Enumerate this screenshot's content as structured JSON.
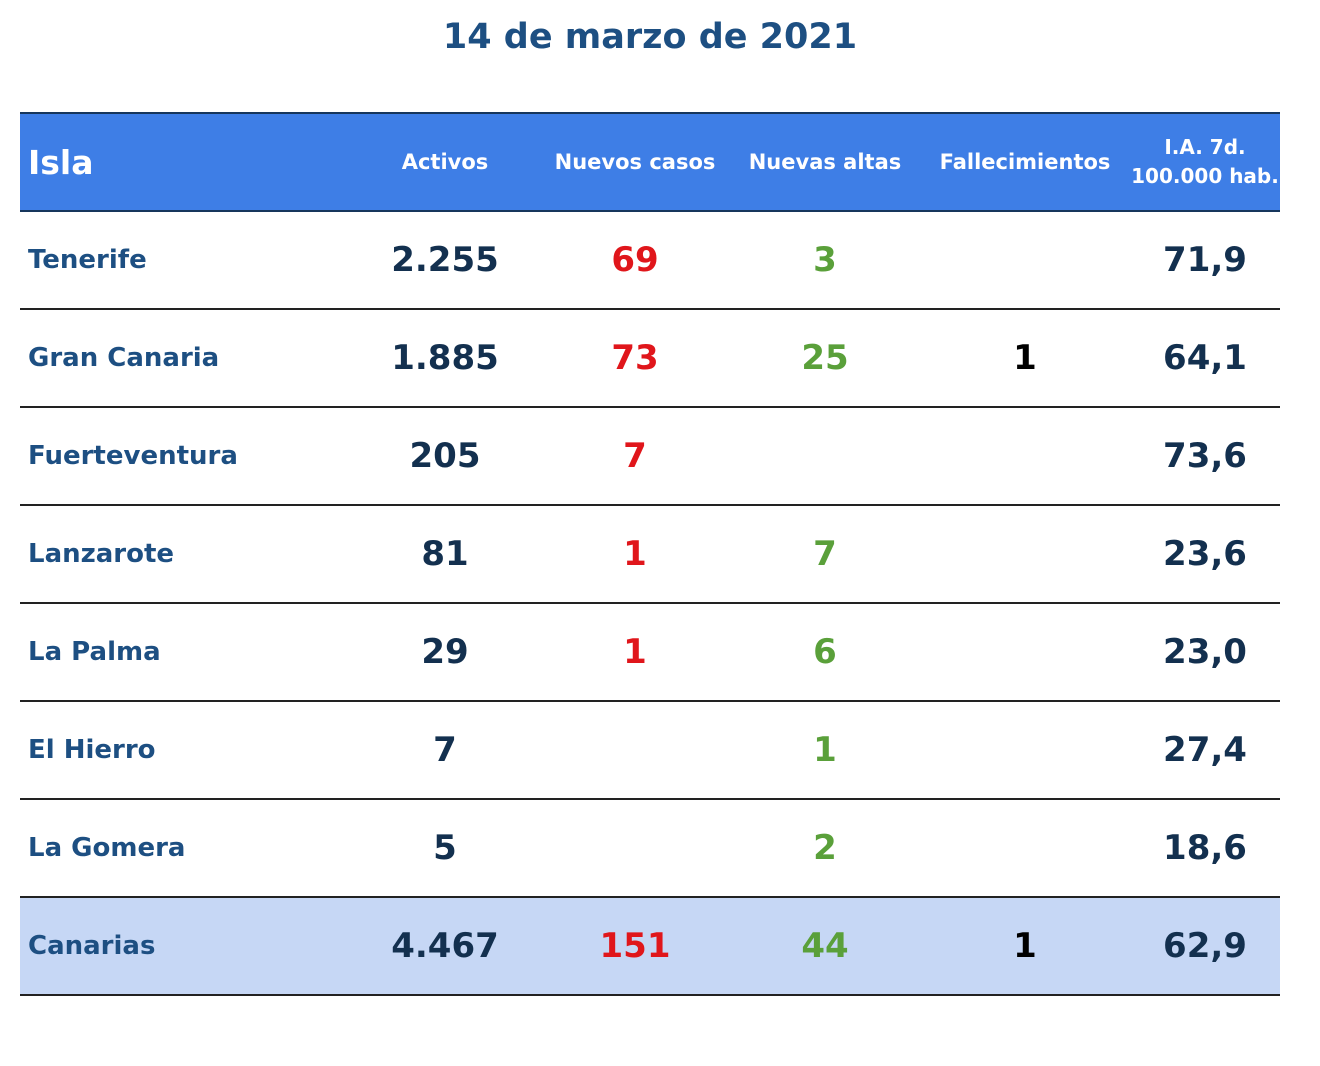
{
  "title": "14 de marzo de 2021",
  "headers": {
    "isla": "Isla",
    "activos": "Activos",
    "nuevos": "Nuevos casos",
    "altas": "Nuevas altas",
    "fallecimientos": "Fallecimientos",
    "ia_line1": "I.A. 7d.",
    "ia_line2": "100.000 hab."
  },
  "rows": [
    {
      "isla": "Tenerife",
      "activos": "2.255",
      "nuevos": "69",
      "altas": "3",
      "fallecimientos": "",
      "ia": "71,9"
    },
    {
      "isla": "Gran Canaria",
      "activos": "1.885",
      "nuevos": "73",
      "altas": "25",
      "fallecimientos": "1",
      "ia": "64,1"
    },
    {
      "isla": "Fuerteventura",
      "activos": "205",
      "nuevos": "7",
      "altas": "",
      "fallecimientos": "",
      "ia": "73,6"
    },
    {
      "isla": "Lanzarote",
      "activos": "81",
      "nuevos": "1",
      "altas": "7",
      "fallecimientos": "",
      "ia": "23,6"
    },
    {
      "isla": "La Palma",
      "activos": "29",
      "nuevos": "1",
      "altas": "6",
      "fallecimientos": "",
      "ia": "23,0"
    },
    {
      "isla": "El Hierro",
      "activos": "7",
      "nuevos": "",
      "altas": "1",
      "fallecimientos": "",
      "ia": "27,4"
    },
    {
      "isla": "La Gomera",
      "activos": "5",
      "nuevos": "",
      "altas": "2",
      "fallecimientos": "",
      "ia": "18,6"
    },
    {
      "isla": "Canarias",
      "activos": "4.467",
      "nuevos": "151",
      "altas": "44",
      "fallecimientos": "1",
      "ia": "62,9"
    }
  ],
  "colors": {
    "header_bg": "#3e7ee6",
    "total_bg": "#c6d7f5",
    "nuevos": "#e0161b",
    "altas": "#5aa03a",
    "isla": "#1d4f82"
  }
}
